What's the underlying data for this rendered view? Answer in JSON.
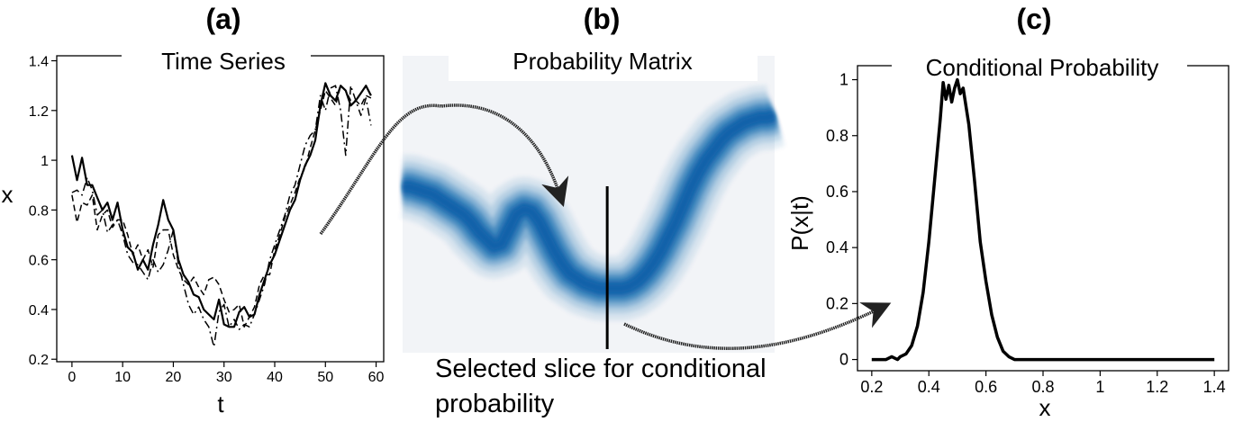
{
  "panels": {
    "a": {
      "tag": "(a)",
      "title": "Time Series"
    },
    "b": {
      "tag": "(b)",
      "title": "Probability Matrix",
      "caption_lines": [
        "Selected slice for conditional",
        "probability"
      ]
    },
    "c": {
      "tag": "(c)",
      "title": "Conditional Probability"
    }
  },
  "colors": {
    "ink": "#000000",
    "matrix_band": "#0b5fa8",
    "matrix_background": "#f2f4f7"
  },
  "chart_data": [
    {
      "type": "line",
      "title": "Time Series",
      "xlabel": "t",
      "ylabel": "x",
      "xlim": [
        -3,
        61.5
      ],
      "ylim": [
        0.19,
        1.42
      ],
      "xticks": [
        0,
        10,
        20,
        30,
        40,
        50,
        60
      ],
      "yticks": [
        0.2,
        0.4,
        0.6,
        0.8,
        1.0,
        1.2,
        1.4
      ],
      "grid": false,
      "series": [
        {
          "style": "solid",
          "x": [
            0,
            1,
            2,
            3,
            4,
            5,
            6,
            7,
            8,
            9,
            10,
            11,
            12,
            13,
            14,
            15,
            16,
            17,
            18,
            19,
            20,
            21,
            22,
            23,
            24,
            25,
            26,
            27,
            28,
            29,
            30,
            31,
            32,
            33,
            34,
            35,
            36,
            37,
            38,
            39,
            40,
            41,
            42,
            43,
            44,
            45,
            46,
            47,
            48,
            49,
            50,
            51,
            52,
            53,
            54,
            55,
            56,
            57,
            58,
            59
          ],
          "values": [
            1.02,
            0.92,
            1.01,
            0.9,
            0.9,
            0.85,
            0.8,
            0.83,
            0.76,
            0.83,
            0.72,
            0.65,
            0.63,
            0.56,
            0.6,
            0.56,
            0.66,
            0.74,
            0.84,
            0.76,
            0.72,
            0.6,
            0.54,
            0.51,
            0.46,
            0.45,
            0.4,
            0.38,
            0.36,
            0.44,
            0.34,
            0.33,
            0.33,
            0.39,
            0.41,
            0.37,
            0.38,
            0.46,
            0.52,
            0.58,
            0.62,
            0.68,
            0.74,
            0.8,
            0.84,
            0.92,
            0.98,
            1.02,
            1.08,
            1.22,
            1.31,
            1.26,
            1.24,
            1.3,
            1.28,
            1.22,
            1.24,
            1.27,
            1.3,
            1.26
          ]
        },
        {
          "style": "dashed",
          "x": [
            0,
            1,
            2,
            3,
            4,
            5,
            6,
            7,
            8,
            9,
            10,
            11,
            12,
            13,
            14,
            15,
            16,
            17,
            18,
            19,
            20,
            21,
            22,
            23,
            24,
            25,
            26,
            27,
            28,
            29,
            30,
            31,
            32,
            33,
            34,
            35,
            36,
            37,
            38,
            39,
            40,
            41,
            42,
            43,
            44,
            45,
            46,
            47,
            48,
            49,
            50,
            51,
            52,
            53,
            54,
            55,
            56,
            57,
            58,
            59
          ],
          "values": [
            0.86,
            0.75,
            0.83,
            0.82,
            0.86,
            0.72,
            0.78,
            0.8,
            0.73,
            0.76,
            0.76,
            0.7,
            0.62,
            0.66,
            0.6,
            0.64,
            0.57,
            0.7,
            0.72,
            0.72,
            0.62,
            0.56,
            0.52,
            0.5,
            0.53,
            0.49,
            0.46,
            0.52,
            0.53,
            0.5,
            0.44,
            0.39,
            0.4,
            0.42,
            0.33,
            0.37,
            0.41,
            0.5,
            0.54,
            0.54,
            0.64,
            0.7,
            0.77,
            0.82,
            0.87,
            0.93,
            0.97,
            1.05,
            1.12,
            1.2,
            1.28,
            1.25,
            1.22,
            1.3,
            1.28,
            1.24,
            1.24,
            1.22,
            1.26,
            1.25
          ]
        },
        {
          "style": "dashdot",
          "x": [
            0,
            1,
            2,
            3,
            4,
            5,
            6,
            7,
            8,
            9,
            10,
            11,
            12,
            13,
            14,
            15,
            16,
            17,
            18,
            19,
            20,
            21,
            22,
            23,
            24,
            25,
            26,
            27,
            28,
            29,
            30,
            31,
            32,
            33,
            34,
            35,
            36,
            37,
            38,
            39,
            40,
            41,
            42,
            43,
            44,
            45,
            46,
            47,
            48,
            49,
            50,
            51,
            52,
            53,
            54,
            55,
            56,
            57,
            58,
            59
          ],
          "values": [
            0.87,
            0.88,
            0.86,
            0.93,
            0.88,
            0.78,
            0.8,
            0.71,
            0.74,
            0.76,
            0.7,
            0.62,
            0.59,
            0.58,
            0.55,
            0.52,
            0.6,
            0.55,
            0.58,
            0.64,
            0.72,
            0.58,
            0.5,
            0.42,
            0.38,
            0.41,
            0.36,
            0.33,
            0.25,
            0.39,
            0.42,
            0.33,
            0.36,
            0.32,
            0.34,
            0.33,
            0.38,
            0.44,
            0.5,
            0.6,
            0.66,
            0.72,
            0.78,
            0.86,
            0.9,
            0.98,
            1.06,
            1.1,
            1.12,
            1.26,
            1.2,
            1.29,
            1.3,
            1.2,
            1.02,
            1.3,
            1.24,
            1.18,
            1.25,
            1.14
          ]
        }
      ]
    },
    {
      "type": "heatmap",
      "title": "Probability Matrix",
      "columns": 60,
      "band_center": [
        0.87,
        0.87,
        0.86,
        0.85,
        0.84,
        0.82,
        0.8,
        0.78,
        0.76,
        0.73,
        0.69,
        0.66,
        0.63,
        0.64,
        0.7,
        0.76,
        0.78,
        0.77,
        0.73,
        0.67,
        0.61,
        0.56,
        0.52,
        0.5,
        0.48,
        0.47,
        0.46,
        0.46,
        0.46,
        0.46,
        0.47,
        0.49,
        0.52,
        0.56,
        0.61,
        0.67,
        0.73,
        0.8,
        0.87,
        0.93,
        0.98,
        1.02,
        1.06,
        1.09,
        1.11,
        1.13,
        1.14,
        1.15,
        1.15,
        1.16
      ],
      "band_width": 0.06,
      "selected_column": 0.55
    },
    {
      "type": "line",
      "title": "Conditional Probability",
      "xlabel": "x",
      "ylabel": "P(x|t)",
      "xlim": [
        0.15,
        1.45
      ],
      "ylim": [
        -0.04,
        1.05
      ],
      "xticks": [
        0.2,
        0.4,
        0.6,
        0.8,
        1.0,
        1.2,
        1.4
      ],
      "yticks": [
        0.0,
        0.2,
        0.4,
        0.6,
        0.8,
        1.0
      ],
      "grid": false,
      "series": [
        {
          "style": "solid",
          "x": [
            0.2,
            0.25,
            0.27,
            0.29,
            0.3,
            0.32,
            0.34,
            0.36,
            0.38,
            0.4,
            0.42,
            0.44,
            0.45,
            0.46,
            0.47,
            0.48,
            0.49,
            0.5,
            0.51,
            0.52,
            0.54,
            0.56,
            0.58,
            0.6,
            0.62,
            0.64,
            0.66,
            0.68,
            0.7,
            0.75,
            0.8,
            1.0,
            1.2,
            1.4
          ],
          "values": [
            0.0,
            0.0,
            0.01,
            0.0,
            0.01,
            0.02,
            0.05,
            0.12,
            0.24,
            0.42,
            0.64,
            0.86,
            0.99,
            0.93,
            0.98,
            0.92,
            0.97,
            1.0,
            0.95,
            0.97,
            0.84,
            0.64,
            0.42,
            0.28,
            0.16,
            0.08,
            0.03,
            0.01,
            0.0,
            0.0,
            0.0,
            0.0,
            0.0,
            0.0
          ]
        }
      ]
    }
  ]
}
